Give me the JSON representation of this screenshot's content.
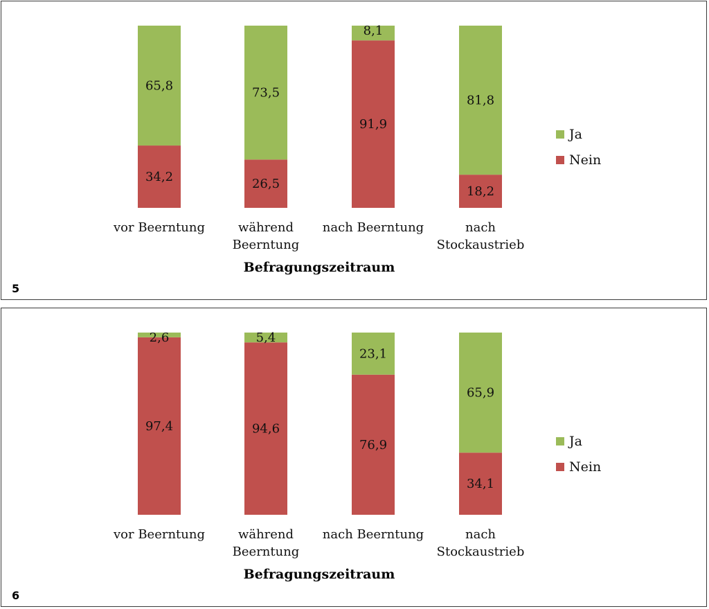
{
  "colors": {
    "ja": "#9bbb59",
    "nein": "#c0504d"
  },
  "chart_data": [
    {
      "type": "bar",
      "stacked": true,
      "percent_stacked": true,
      "panel_label": "5",
      "categories": [
        "vor Beerntung",
        "während Beerntung",
        "nach Beerntung",
        "nach Stockaustrieb"
      ],
      "series": [
        {
          "name": "Nein",
          "values": [
            34.2,
            26.5,
            91.9,
            18.2
          ]
        },
        {
          "name": "Ja",
          "values": [
            65.8,
            73.5,
            8.1,
            81.8
          ]
        }
      ],
      "data_labels": {
        "Nein": [
          "34,2",
          "26,5",
          "91,9",
          "18,2"
        ],
        "Ja": [
          "65,8",
          "73,5",
          "8,1",
          "81,8"
        ]
      },
      "xlabel": "Befragungszeitraum",
      "ylim": [
        0,
        100
      ],
      "legend": {
        "position": "right",
        "entries": [
          "Ja",
          "Nein"
        ]
      },
      "grid": false
    },
    {
      "type": "bar",
      "stacked": true,
      "percent_stacked": true,
      "panel_label": "6",
      "categories": [
        "vor Beerntung",
        "während Beerntung",
        "nach Beerntung",
        "nach Stockaustrieb"
      ],
      "series": [
        {
          "name": "Nein",
          "values": [
            97.4,
            94.6,
            76.9,
            34.1
          ]
        },
        {
          "name": "Ja",
          "values": [
            2.6,
            5.4,
            23.1,
            65.9
          ]
        }
      ],
      "data_labels": {
        "Nein": [
          "97,4",
          "94,6",
          "76,9",
          "34,1"
        ],
        "Ja": [
          "2,6",
          "5,4",
          "23,1",
          "65,9"
        ]
      },
      "xlabel": "Befragungszeitraum",
      "ylim": [
        0,
        100
      ],
      "legend": {
        "position": "right",
        "entries": [
          "Ja",
          "Nein"
        ]
      },
      "grid": false
    }
  ]
}
